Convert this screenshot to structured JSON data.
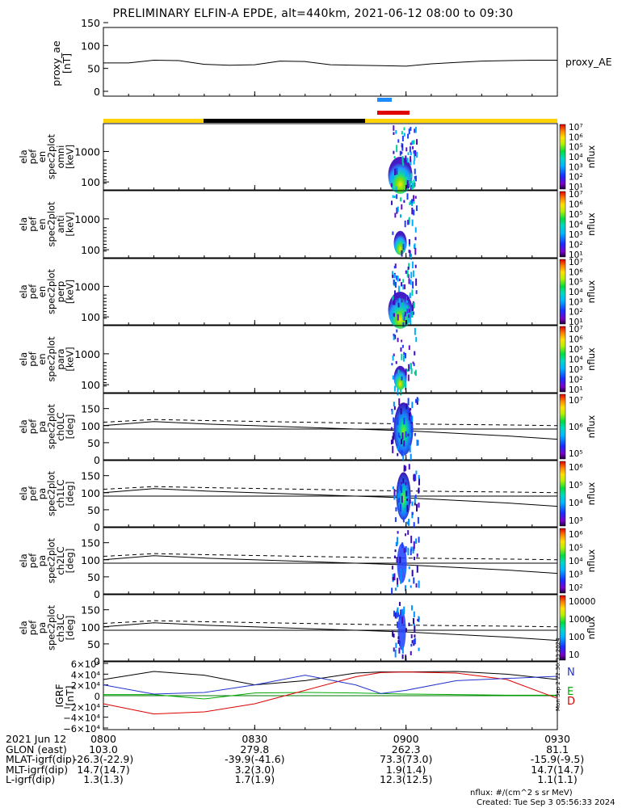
{
  "title": "PRELIMINARY ELFIN-A EPDE, alt=440km, 2021-06-12 08:00 to 09:30",
  "chart_data": [
    {
      "type": "line",
      "panel": "proxy_ae",
      "ylabel_lines": [
        "proxy_ae",
        "[nT]"
      ],
      "legend": "proxy_AE",
      "yticks": [
        "0",
        "50",
        "100",
        "150"
      ],
      "ylim": [
        0,
        150
      ],
      "xlim_minutes": [
        0,
        90
      ],
      "x": [
        0,
        5,
        10,
        15,
        20,
        25,
        30,
        35,
        40,
        45,
        50,
        55,
        60,
        65,
        70,
        75,
        80,
        85,
        90
      ],
      "values": [
        62,
        62,
        68,
        67,
        59,
        57,
        58,
        66,
        65,
        58,
        57,
        56,
        55,
        60,
        63,
        66,
        67,
        68,
        68
      ]
    },
    {
      "type": "heatmap",
      "panel": "omni",
      "ylabel_lines": [
        "ela",
        "pef",
        "en",
        "spec2plot",
        "omni",
        "[keV]"
      ],
      "yticks": [
        "100",
        "1000"
      ],
      "colorbar_ticks": [
        "10¹",
        "10²",
        "10³",
        "10⁴",
        "10⁵",
        "10⁶",
        "10⁷"
      ],
      "zlabel": "nflux",
      "active_interval_minutes": [
        57,
        62
      ]
    },
    {
      "type": "heatmap",
      "panel": "anti",
      "ylabel_lines": [
        "ela",
        "pef",
        "en",
        "spec2plot",
        "anti",
        "[keV]"
      ],
      "yticks": [
        "100",
        "1000"
      ],
      "colorbar_ticks": [
        "10¹",
        "10²",
        "10³",
        "10⁴",
        "10⁵",
        "10⁶",
        "10⁷"
      ],
      "zlabel": "nflux",
      "active_interval_minutes": [
        57,
        62
      ]
    },
    {
      "type": "heatmap",
      "panel": "perp",
      "ylabel_lines": [
        "ela",
        "pef",
        "en",
        "spec2plot",
        "perp",
        "[keV]"
      ],
      "yticks": [
        "100",
        "1000"
      ],
      "colorbar_ticks": [
        "10¹",
        "10²",
        "10³",
        "10⁴",
        "10⁵",
        "10⁶",
        "10⁷"
      ],
      "zlabel": "nflux",
      "active_interval_minutes": [
        57,
        62
      ]
    },
    {
      "type": "heatmap",
      "panel": "para",
      "ylabel_lines": [
        "ela",
        "pef",
        "en",
        "spec2plot",
        "para",
        "[keV]"
      ],
      "yticks": [
        "100",
        "1000"
      ],
      "colorbar_ticks": [
        "10¹",
        "10²",
        "10³",
        "10⁴",
        "10⁵",
        "10⁶",
        "10⁷"
      ],
      "zlabel": "nflux",
      "active_interval_minutes": [
        57,
        62
      ]
    },
    {
      "type": "heatmap",
      "panel": "ch0LC",
      "ylabel_lines": [
        "ela",
        "pef",
        "pa",
        "spec2plot",
        "ch0LC",
        "[deg]"
      ],
      "yticks": [
        "0",
        "50",
        "100",
        "150"
      ],
      "ylim": [
        0,
        180
      ],
      "colorbar_ticks": [
        "10⁵",
        "10⁶",
        "10⁷"
      ],
      "zlabel": "nflux",
      "loss_cone_x": [
        0,
        10,
        20,
        40,
        60,
        80,
        90
      ],
      "loss_cone_deg": [
        100,
        112,
        105,
        95,
        85,
        70,
        60
      ],
      "antiloss_cone_deg": [
        110,
        118,
        115,
        110,
        105,
        102,
        100
      ]
    },
    {
      "type": "heatmap",
      "panel": "ch1LC",
      "ylabel_lines": [
        "ela",
        "pef",
        "pa",
        "spec2plot",
        "ch1LC",
        "[deg]"
      ],
      "yticks": [
        "0",
        "50",
        "100",
        "150"
      ],
      "ylim": [
        0,
        180
      ],
      "colorbar_ticks": [
        "10³",
        "10⁴",
        "10⁵",
        "10⁶"
      ],
      "zlabel": "nflux"
    },
    {
      "type": "heatmap",
      "panel": "ch2LC",
      "ylabel_lines": [
        "ela",
        "pef",
        "pa",
        "spec2plot",
        "ch2LC",
        "[deg]"
      ],
      "yticks": [
        "0",
        "50",
        "100",
        "150"
      ],
      "ylim": [
        0,
        180
      ],
      "colorbar_ticks": [
        "10²",
        "10³",
        "10⁴",
        "10⁵",
        "10⁶"
      ],
      "zlabel": "nflux"
    },
    {
      "type": "heatmap",
      "panel": "ch3LC",
      "ylabel_lines": [
        "ela",
        "pef",
        "pa",
        "spec2plot",
        "ch3LC",
        "[deg]"
      ],
      "yticks": [
        "0",
        "50",
        "100",
        "150"
      ],
      "ylim": [
        0,
        180
      ],
      "colorbar_ticks": [
        "10",
        "100",
        "1000",
        "10000"
      ],
      "zlabel": "nflux"
    },
    {
      "type": "line",
      "panel": "IGRF",
      "ylabel_lines": [
        "IGRF",
        "[nT]"
      ],
      "yticks": [
        "−6×10⁴",
        "−4×10⁴",
        "−2×10⁴",
        "0",
        "2×10⁴",
        "4×10⁴",
        "6×10⁴"
      ],
      "ylim": [
        -60000,
        60000
      ],
      "x": [
        0,
        10,
        20,
        30,
        40,
        50,
        55,
        60,
        70,
        80,
        90
      ],
      "series": [
        {
          "name": "N",
          "color": "#000000",
          "values": [
            30000,
            45000,
            38000,
            20000,
            28000,
            42000,
            44000,
            44000,
            45000,
            40000,
            30000
          ]
        },
        {
          "name": "E",
          "color": "#00aa00",
          "values": [
            2000,
            2000,
            -6000,
            5000,
            6000,
            5000,
            4000,
            3000,
            2000,
            1000,
            1000
          ]
        },
        {
          "name": "D",
          "color": "#dd0000",
          "values": [
            -15000,
            -34000,
            -30000,
            -15000,
            10000,
            35000,
            43000,
            44000,
            42000,
            30000,
            -5000
          ]
        },
        {
          "color": "#2233cc",
          "values": [
            20000,
            3000,
            6000,
            20000,
            38000,
            20000,
            4000,
            10000,
            28000,
            32000,
            36000
          ]
        }
      ]
    }
  ],
  "x_axis": {
    "ticks": [
      "0800",
      "0830",
      "0900",
      "0930"
    ]
  },
  "ephemeris": [
    {
      "label": "2021 Jun 12",
      "values": [
        "0800",
        "0830",
        "0900",
        "0930"
      ]
    },
    {
      "label": "GLON (east)",
      "values": [
        "103.0",
        "279.8",
        "262.3",
        "81.1"
      ]
    },
    {
      "label": "MLAT-igrf(dip)",
      "values": [
        "-26.3(-22.9)",
        "-39.9(-41.6)",
        "73.3(73.0)",
        "-15.9(-9.5)"
      ]
    },
    {
      "label": "MLT-igrf(dip)",
      "values": [
        "14.7(14.7)",
        "3.2(3.0)",
        "1.9(1.4)",
        "14.7(14.7)"
      ]
    },
    {
      "label": "L-igrf(dip)",
      "values": [
        "1.3(1.3)",
        "1.7(1.9)",
        "12.3(12.5)",
        "1.1(1.1)"
      ]
    }
  ],
  "footer": {
    "units": "nflux: #/(cm^2 s sr MeV)",
    "created": "Created: Tue Sep  3 05:56:33 2024"
  },
  "side_stamp": "Mon Sep  2 22:36:33 2024",
  "colors": {
    "sunlight_bar": "#ffd200",
    "shadow_bar": "#000000",
    "science_zone_blue": "#1e8cff",
    "science_zone_red": "#e00000"
  }
}
